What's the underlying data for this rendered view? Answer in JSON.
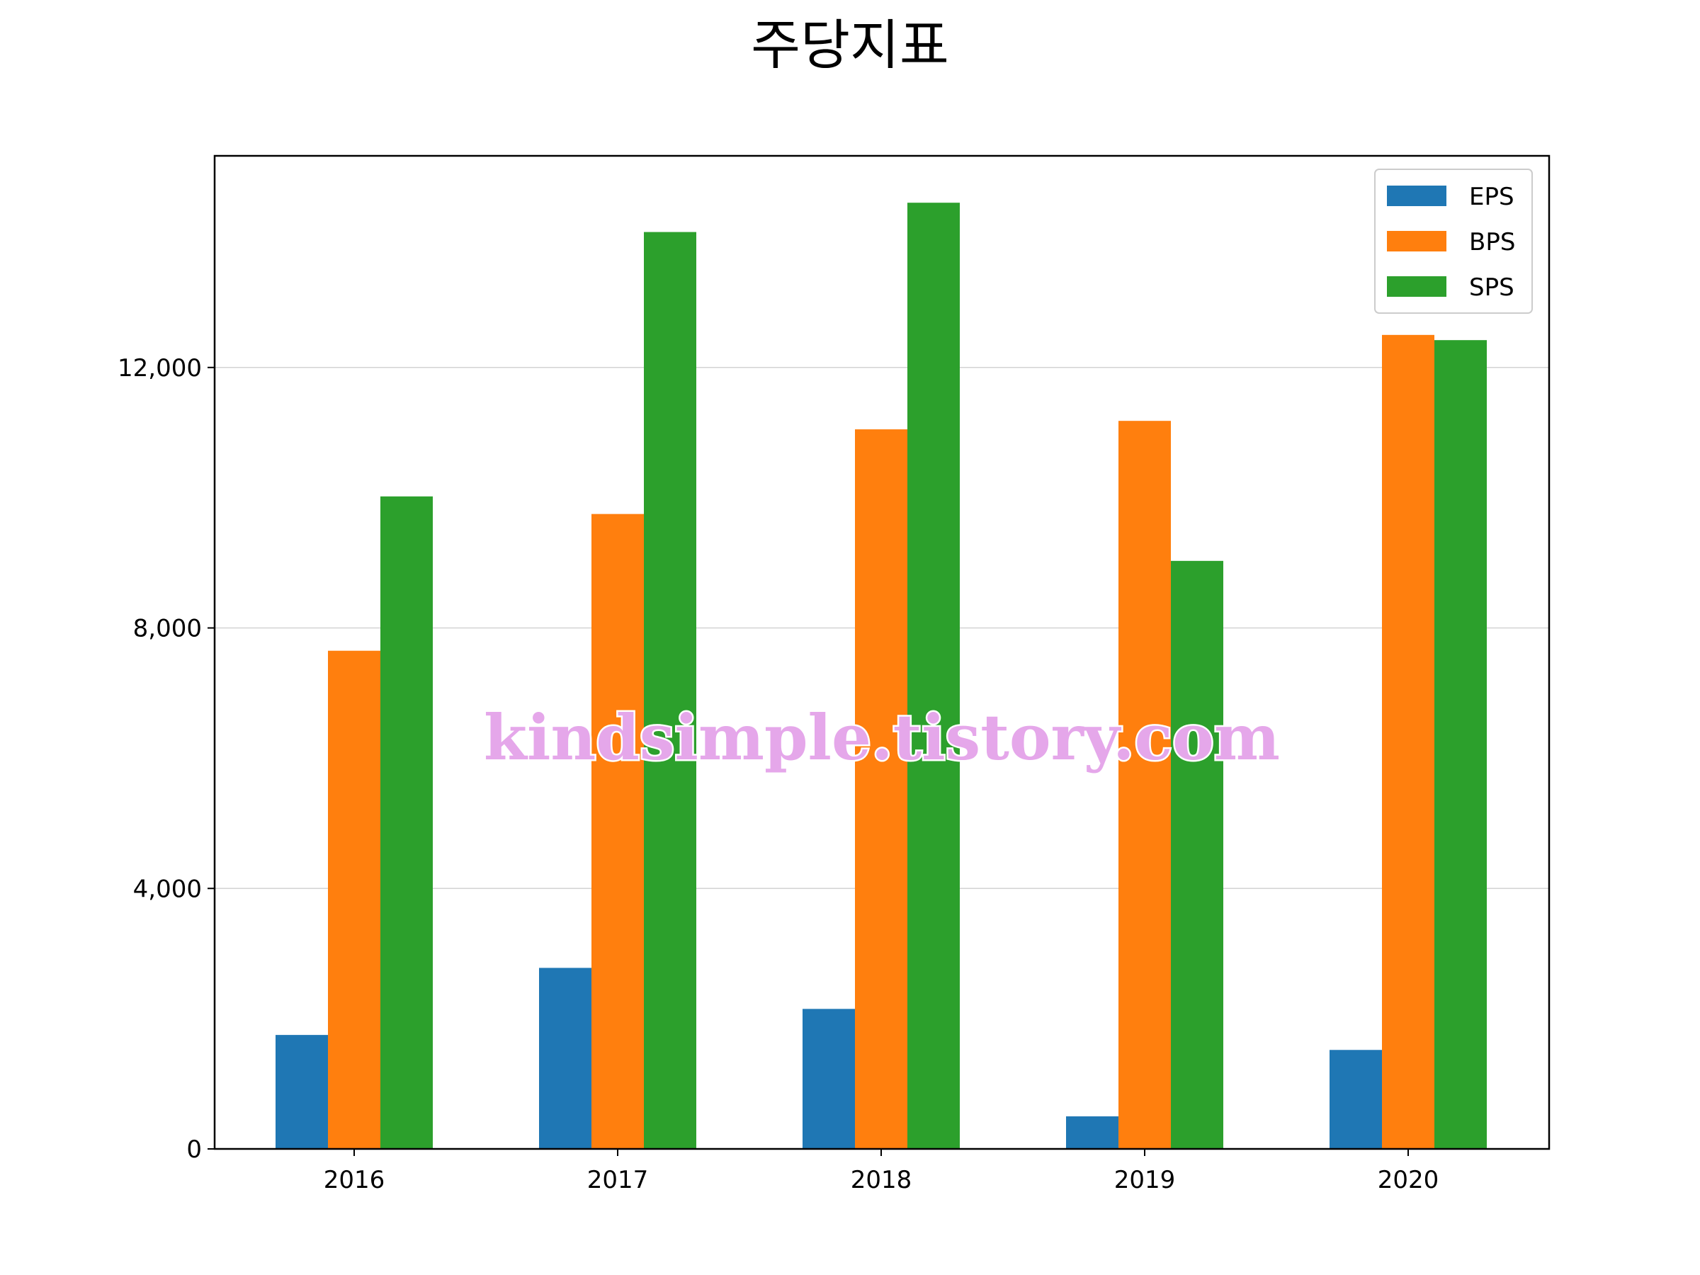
{
  "watermark": "kindsimple.tistory.com",
  "chart_data": {
    "type": "bar",
    "title": "주당지표",
    "xlabel": "",
    "ylabel": "",
    "categories": [
      "2016",
      "2017",
      "2018",
      "2019",
      "2020"
    ],
    "series": [
      {
        "name": "EPS",
        "color": "#1f77b4",
        "values": [
          1750,
          2780,
          2150,
          500,
          1520
        ]
      },
      {
        "name": "BPS",
        "color": "#ff7f0e",
        "values": [
          7650,
          9750,
          11050,
          11180,
          12500
        ]
      },
      {
        "name": "SPS",
        "color": "#2ca02c",
        "values": [
          10020,
          14080,
          14530,
          9030,
          12420
        ]
      }
    ],
    "ylim": [
      0,
      15250
    ],
    "yticks": [
      0,
      4000,
      8000,
      12000
    ],
    "ytick_labels": [
      "0",
      "4,000",
      "8,000",
      "12,000"
    ],
    "grid": "horizontal",
    "legend_position": "top-right"
  }
}
